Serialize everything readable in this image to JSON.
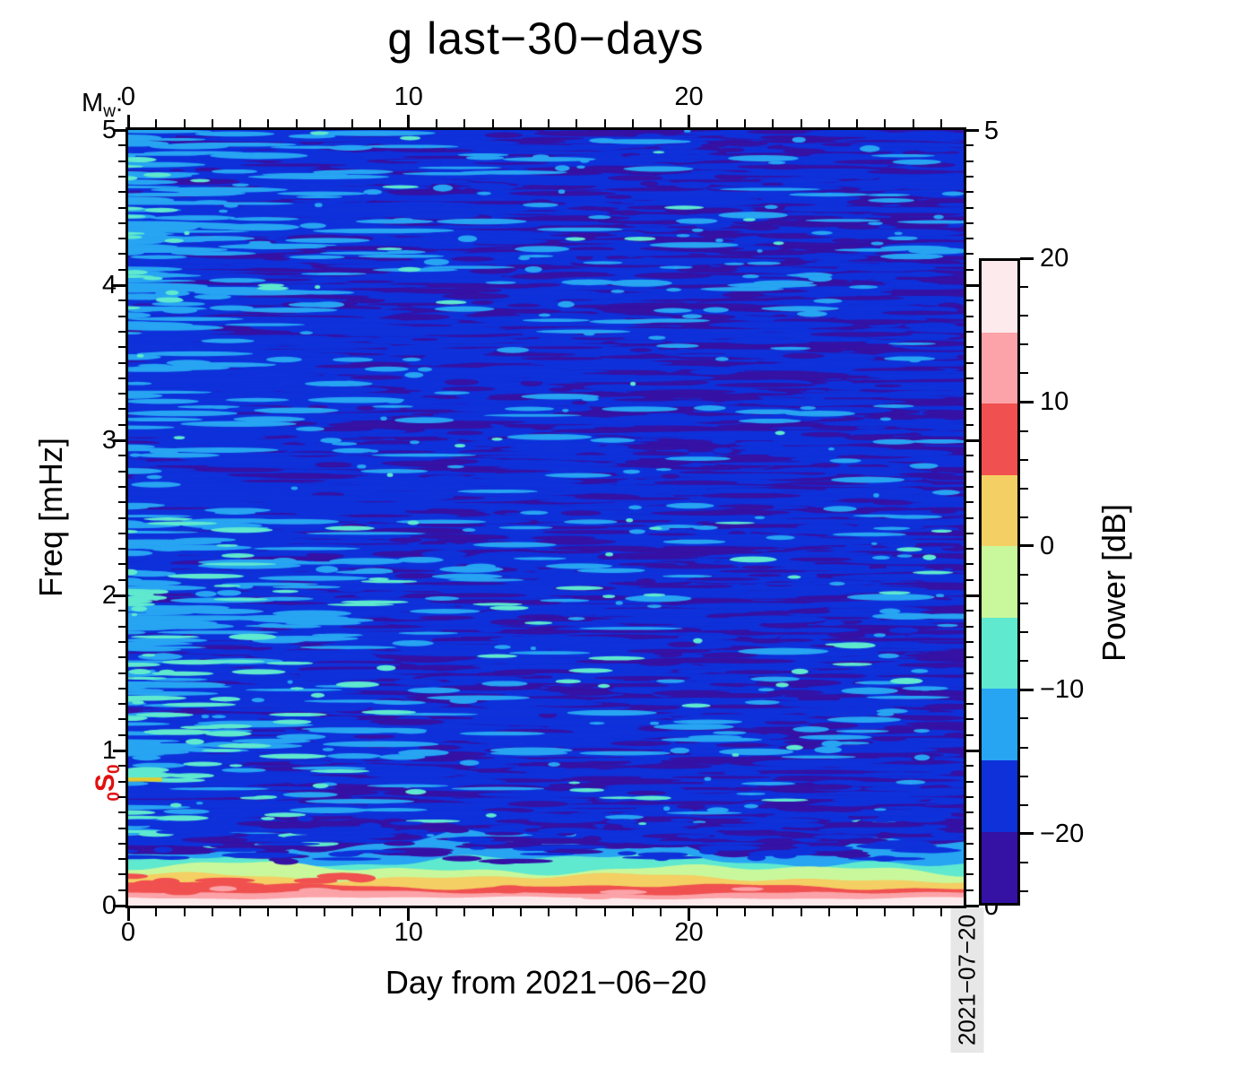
{
  "title": "g last−30−days",
  "top_axis": {
    "label_main": "M",
    "label_sub": "w",
    "label_colon": ":",
    "ticks": [
      {
        "v": 0,
        "label": "0"
      },
      {
        "v": 10,
        "label": "10"
      },
      {
        "v": 20,
        "label": "20"
      }
    ],
    "minor_step_days": 1
  },
  "x_axis": {
    "label": "Day from 2021−06−20",
    "range_days": [
      0,
      29.8
    ],
    "ticks": [
      {
        "v": 0,
        "label": "0"
      },
      {
        "v": 10,
        "label": "10"
      },
      {
        "v": 20,
        "label": "20"
      }
    ],
    "minor_step_days": 1
  },
  "y_axis": {
    "label": "Freq [mHz]",
    "range_mhz": [
      0,
      5
    ],
    "ticks": [
      {
        "v": 5,
        "label": "5"
      },
      {
        "v": 4,
        "label": "4"
      },
      {
        "v": 3,
        "label": "3"
      },
      {
        "v": 2,
        "label": "2"
      },
      {
        "v": 1,
        "label": "1"
      },
      {
        "v": 0,
        "label": "0"
      }
    ],
    "minor_step_mhz": 0.1
  },
  "right_axis": {
    "ticks": [
      {
        "v": 5,
        "label": "5"
      },
      {
        "v": 0,
        "label": "0"
      }
    ],
    "minor_step_mhz": 0.1
  },
  "mode_label": {
    "sub_pre": "0",
    "letter": "S",
    "sub_post": "0",
    "color": "#e11010",
    "freq_mhz": 0.81
  },
  "colorbar": {
    "label": "Power [dB]",
    "range_db": [
      -25,
      20
    ],
    "segment_db": 5,
    "minor_tick_db": 2,
    "major_ticks": [
      {
        "v": 20,
        "label": "20"
      },
      {
        "v": 10,
        "label": "10"
      },
      {
        "v": 0,
        "label": "0"
      },
      {
        "v": -10,
        "label": "−10"
      },
      {
        "v": -20,
        "label": "−20"
      }
    ],
    "levels_top_to_bottom": [
      {
        "db_min": 15,
        "db_max": 20,
        "color": "#fdeaec"
      },
      {
        "db_min": 10,
        "db_max": 15,
        "color": "#fba3a8"
      },
      {
        "db_min": 5,
        "db_max": 10,
        "color": "#f0504f"
      },
      {
        "db_min": 0,
        "db_max": 5,
        "color": "#f4cf63"
      },
      {
        "db_min": -5,
        "db_max": 0,
        "color": "#c9f89c"
      },
      {
        "db_min": -10,
        "db_max": -5,
        "color": "#5fe9cf"
      },
      {
        "db_min": -15,
        "db_max": -10,
        "color": "#27a4f2"
      },
      {
        "db_min": -20,
        "db_max": -15,
        "color": "#0e31da"
      },
      {
        "db_min": -25,
        "db_max": -20,
        "color": "#3511a4"
      }
    ]
  },
  "timestamp": "2021−07−20",
  "chart_data": {
    "type": "heatmap",
    "title": "g last−30−days",
    "xlabel": "Day from 2021−06−20",
    "ylabel": "Freq [mHz]",
    "colorbar_label": "Power [dB]",
    "x_range_days": [
      0,
      29.8
    ],
    "y_range_mhz": [
      0,
      5
    ],
    "power_range_db": [
      -25,
      20
    ],
    "power_levels_db": [
      [
        15,
        20,
        "#fdeaec"
      ],
      [
        10,
        15,
        "#fba3a8"
      ],
      [
        5,
        10,
        "#f0504f"
      ],
      [
        0,
        5,
        "#f4cf63"
      ],
      [
        -5,
        0,
        "#c9f89c"
      ],
      [
        -10,
        -5,
        "#5fe9cf"
      ],
      [
        -15,
        -10,
        "#27a4f2"
      ],
      [
        -20,
        -15,
        "#0e31da"
      ],
      [
        -25,
        -20,
        "#3511a4"
      ]
    ],
    "features": {
      "background": "stochastic field of horizontal streaks, mostly −25…−15 dB (dark indigo with blue streaks); streaks brighter and denser toward day 0; sparse −12…−7 dB light-blue/cyan patches mainly days 0–8",
      "low_freq_band": {
        "description": "continuous high-power band below ~0.45 mHz across all 30 days, power rising toward 0 mHz where it exceeds +15 dB",
        "layer_top_freq_mhz": {
          "light_blue": 0.4,
          "turquoise": 0.31,
          "green": 0.25,
          "gold": 0.195,
          "red": 0.135,
          "salmon": 0.088,
          "pink": 0.052
        }
      },
      "s0_mode_line": {
        "label": "0S0",
        "freq_mhz": 0.814,
        "days": [
          0,
          1.2
        ],
        "power_db": "~+2 (yellow line segment at left edge)",
        "color": "#e2cb30"
      }
    },
    "noise": {
      "seed": 20210720
    }
  }
}
